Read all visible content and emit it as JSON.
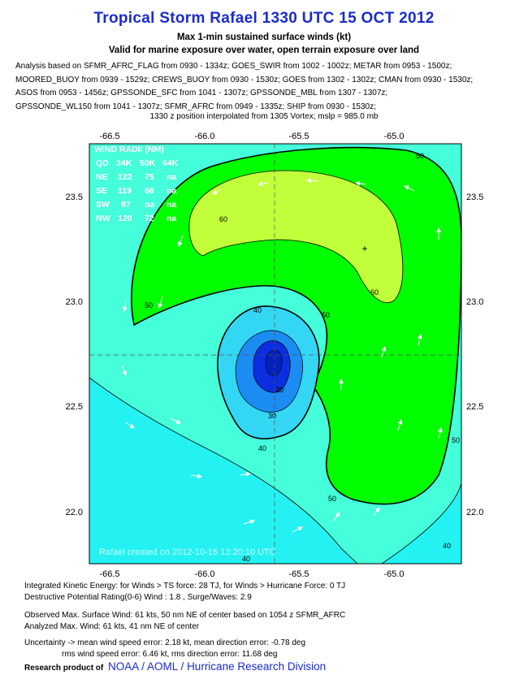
{
  "header": {
    "title": "Tropical Storm Rafael 1330 UTC 15 OCT 2012",
    "subtitle1": "Max 1-min sustained surface winds (kt)",
    "subtitle2": "Valid for marine exposure over water, open terrain exposure over land",
    "analysis_lines": [
      "Analysis based on SFMR_AFRC_FLAG from 0930 - 1334z; GOES_SWIR from 1002 - 1002z; METAR from 0953 - 1500z;",
      "MOORED_BUOY from 0939 - 1529z; CREWS_BUOY from 0930 - 1530z; GOES from 1302 - 1302z; CMAN from 0930 - 1530z;",
      "ASOS from 0953 - 1456z; GPSSONDE_SFC from 1041 - 1307z; GPSSONDE_MBL from 1307 - 1307z;",
      "GPSSONDE_WL150 from 1041 - 1307z; SFMR_AFRC from 0949 - 1335z; SHIP from 0930 - 1530z;"
    ],
    "position_note": "1330 z position interpolated from 1305 Vortex; mslp = 985.0 mb"
  },
  "map": {
    "lon_ticks": [
      "-66.5",
      "-66.0",
      "-65.5",
      "-65.0"
    ],
    "lat_ticks": [
      "23.5",
      "23.0",
      "22.5",
      "22.0"
    ],
    "center_lon": -65.6,
    "center_lat": 22.75,
    "wind_radii": {
      "title": "WIND RADII (NM)",
      "header": [
        "QD",
        "34K",
        "50K",
        "64K"
      ],
      "rows": [
        [
          "NE",
          "122",
          "75",
          "na"
        ],
        [
          "SE",
          "119",
          "66",
          "na"
        ],
        [
          "SW",
          "87",
          "na",
          "na"
        ],
        [
          "NW",
          "120",
          "72",
          "na"
        ]
      ]
    },
    "contour_labels": [
      "60",
      "60",
      "50",
      "50",
      "50",
      "50",
      "50",
      "40",
      "40",
      "40",
      "30",
      "20",
      "40"
    ],
    "watermark": "Rafael    created on 2012-10-16 13:20:10 UTC",
    "colors": {
      "below_20": "#0a2ee0",
      "20_30": "#1a8cf2",
      "30_40": "#33d7f4",
      "40_50": "#44ffd9",
      "50_60": "#00ff00",
      "60_64": "#c0ff3a",
      "outer": "#24f2f2"
    }
  },
  "footer": {
    "ike": "Integrated Kinetic Energy: for Winds > TS force: 28 TJ, for Winds > Hurricane Force: 0 TJ",
    "dpr": "Destructive Potential Rating(0-6)   Wind : 1.8 , Surge/Waves: 2.9",
    "observed": "Observed Max. Surface Wind: 61 kts, 50 nm NE of center based on 1054 z SFMR_AFRC",
    "analyzed": "Analyzed Max. Wind: 61 kts, 41 nm  NE of center",
    "uncertainty1": "Uncertainty -> mean wind speed error: 2.18 kt, mean direction error:  -0.78 deg",
    "uncertainty2": "rms wind speed error: 6.46 kt, rms direction error: 11.68 deg",
    "credit_prefix": "Research product of",
    "credit_org": "NOAA  /  AOML  /  Hurricane Research Division"
  }
}
